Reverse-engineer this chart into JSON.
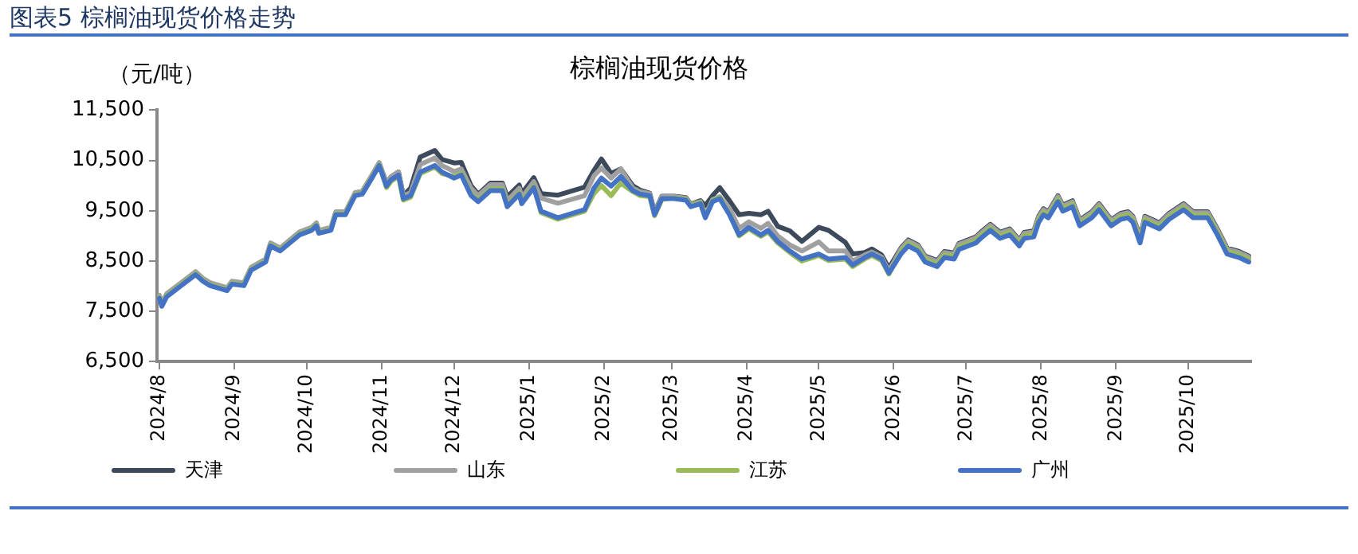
{
  "chart_data": {
    "type": "line",
    "title": "图表5 棕榈油现货价格走势",
    "subtitle": "棕榈油现货价格",
    "ylabel": "（元/吨）",
    "x": [
      "2024-08-01",
      "2024-08-02",
      "2024-08-04",
      "2024-08-10",
      "2024-08-16",
      "2024-08-19",
      "2024-08-22",
      "2024-08-29",
      "2024-08-31",
      "2024-09-05",
      "2024-09-08",
      "2024-09-14",
      "2024-09-16",
      "2024-09-20",
      "2024-09-28",
      "2024-10-03",
      "2024-10-05",
      "2024-10-06",
      "2024-10-11",
      "2024-10-13",
      "2024-10-17",
      "2024-10-21",
      "2024-10-24",
      "2024-10-28",
      "2024-10-31",
      "2024-11-03",
      "2024-11-05",
      "2024-11-08",
      "2024-11-10",
      "2024-11-13",
      "2024-11-17",
      "2024-11-23",
      "2024-11-26",
      "2024-12-01",
      "2024-12-04",
      "2024-12-08",
      "2024-12-11",
      "2024-12-16",
      "2024-12-21",
      "2024-12-23",
      "2024-12-28",
      "2024-12-29",
      "2025-01-03",
      "2025-01-06",
      "2025-01-13",
      "2025-01-24",
      "2025-01-28",
      "2025-01-31",
      "2025-02-04",
      "2025-02-08",
      "2025-02-13",
      "2025-02-16",
      "2025-02-20",
      "2025-02-22",
      "2025-02-25",
      "2025-03-02",
      "2025-03-07",
      "2025-03-09",
      "2025-03-13",
      "2025-03-15",
      "2025-03-18",
      "2025-03-21",
      "2025-03-25",
      "2025-03-29",
      "2025-04-02",
      "2025-04-07",
      "2025-04-10",
      "2025-04-14",
      "2025-04-19",
      "2025-04-24",
      "2025-05-01",
      "2025-05-05",
      "2025-05-12",
      "2025-05-15",
      "2025-05-20",
      "2025-05-23",
      "2025-05-27",
      "2025-05-30",
      "2025-06-04",
      "2025-06-07",
      "2025-06-11",
      "2025-06-14",
      "2025-06-19",
      "2025-06-22",
      "2025-06-26",
      "2025-06-28",
      "2025-07-05",
      "2025-07-07",
      "2025-07-11",
      "2025-07-15",
      "2025-07-19",
      "2025-07-23",
      "2025-07-25",
      "2025-07-29",
      "2025-07-31",
      "2025-08-02",
      "2025-08-04",
      "2025-08-08",
      "2025-08-10",
      "2025-08-14",
      "2025-08-17",
      "2025-08-22",
      "2025-08-25",
      "2025-08-30",
      "2025-09-03",
      "2025-09-06",
      "2025-09-08",
      "2025-09-11",
      "2025-09-13",
      "2025-09-19",
      "2025-09-23",
      "2025-09-29",
      "2025-10-03",
      "2025-10-09",
      "2025-10-13",
      "2025-10-17",
      "2025-10-22",
      "2025-10-26"
    ],
    "series": [
      {
        "name": "天津",
        "color": "#3d4a5c",
        "values": [
          7800,
          7640,
          7830,
          8050,
          8270,
          8140,
          8050,
          7950,
          8080,
          8050,
          8360,
          8520,
          8840,
          8740,
          9060,
          9150,
          9240,
          9090,
          9150,
          9460,
          9460,
          9840,
          9870,
          10190,
          10440,
          10050,
          10180,
          10270,
          9800,
          9950,
          10570,
          10700,
          10520,
          10450,
          10460,
          10000,
          9830,
          10050,
          10050,
          9780,
          10010,
          9840,
          10160,
          9840,
          9810,
          9970,
          10310,
          10530,
          10240,
          10330,
          10000,
          9910,
          9850,
          9470,
          9790,
          9790,
          9760,
          9630,
          9700,
          9600,
          9800,
          9960,
          9700,
          9420,
          9450,
          9420,
          9490,
          9190,
          9100,
          8890,
          9170,
          9110,
          8870,
          8640,
          8670,
          8740,
          8620,
          8360,
          8760,
          8920,
          8820,
          8600,
          8510,
          8690,
          8660,
          8850,
          8980,
          9070,
          9230,
          9070,
          9140,
          8920,
          9070,
          9100,
          9390,
          9540,
          9480,
          9800,
          9610,
          9700,
          9320,
          9480,
          9640,
          9320,
          9450,
          9480,
          9390,
          8980,
          9390,
          9260,
          9450,
          9640,
          9480,
          9480,
          9140,
          8760,
          8690,
          8600
        ]
      },
      {
        "name": "山东",
        "color": "#a0a0a0",
        "values": [
          7820,
          7660,
          7850,
          8070,
          8290,
          8160,
          8070,
          7970,
          8100,
          8070,
          8380,
          8540,
          8860,
          8760,
          9080,
          9170,
          9260,
          9110,
          9170,
          9480,
          9480,
          9860,
          9890,
          10210,
          10460,
          10050,
          10180,
          10270,
          9800,
          9860,
          10420,
          10550,
          10400,
          10280,
          10330,
          9950,
          9800,
          10020,
          10020,
          9700,
          9950,
          9760,
          10080,
          9750,
          9650,
          9800,
          10200,
          10350,
          10150,
          10330,
          9950,
          9880,
          9840,
          9460,
          9780,
          9780,
          9750,
          9620,
          9680,
          9400,
          9720,
          9780,
          9550,
          9150,
          9280,
          9150,
          9250,
          9000,
          8820,
          8700,
          8880,
          8700,
          8700,
          8500,
          8620,
          8680,
          8580,
          8300,
          8740,
          8900,
          8800,
          8580,
          8490,
          8670,
          8640,
          8830,
          8960,
          9050,
          9210,
          9050,
          9120,
          8900,
          9050,
          9080,
          9370,
          9520,
          9460,
          9780,
          9590,
          9680,
          9300,
          9460,
          9620,
          9300,
          9430,
          9460,
          9370,
          8960,
          9370,
          9240,
          9430,
          9620,
          9460,
          9460,
          9120,
          8740,
          8670,
          8580
        ]
      },
      {
        "name": "江苏",
        "color": "#9bbb59",
        "values": [
          7780,
          7620,
          7810,
          8030,
          8250,
          8120,
          8030,
          7930,
          8060,
          8030,
          8340,
          8500,
          8820,
          8720,
          9040,
          9130,
          9220,
          9070,
          9130,
          9440,
          9440,
          9820,
          9850,
          10170,
          10420,
          9960,
          10090,
          10180,
          9710,
          9770,
          10240,
          10370,
          10240,
          10180,
          10240,
          9830,
          9710,
          9930,
          9930,
          9610,
          9860,
          9670,
          9990,
          9460,
          9330,
          9490,
          9850,
          10000,
          9800,
          10050,
          9880,
          9800,
          9780,
          9400,
          9720,
          9760,
          9730,
          9600,
          9660,
          9380,
          9700,
          9760,
          9440,
          9000,
          9140,
          8990,
          9080,
          8860,
          8670,
          8500,
          8610,
          8510,
          8540,
          8390,
          8540,
          8610,
          8510,
          8240,
          8690,
          8850,
          8750,
          8530,
          8440,
          8620,
          8590,
          8780,
          8910,
          9000,
          9160,
          9000,
          9070,
          8850,
          9000,
          9030,
          9320,
          9470,
          9410,
          9730,
          9540,
          9630,
          9250,
          9410,
          9570,
          9250,
          9380,
          9410,
          9320,
          8910,
          9320,
          9190,
          9380,
          9570,
          9410,
          9410,
          9070,
          8690,
          8620,
          8530
        ]
      },
      {
        "name": "广州",
        "color": "#4472c4",
        "values": [
          7760,
          7600,
          7790,
          8010,
          8230,
          8100,
          8010,
          7910,
          8040,
          8010,
          8320,
          8480,
          8800,
          8700,
          9020,
          9110,
          9200,
          9050,
          9110,
          9420,
          9420,
          9800,
          9830,
          10150,
          10400,
          9990,
          10120,
          10210,
          9740,
          9800,
          10270,
          10400,
          10270,
          10150,
          10210,
          9800,
          9680,
          9900,
          9900,
          9580,
          9830,
          9640,
          9960,
          9490,
          9360,
          9520,
          9960,
          10150,
          9990,
          10180,
          9900,
          9830,
          9800,
          9420,
          9740,
          9740,
          9710,
          9580,
          9640,
          9360,
          9680,
          9740,
          9420,
          9020,
          9170,
          9020,
          9110,
          8890,
          8700,
          8540,
          8640,
          8540,
          8570,
          8420,
          8570,
          8640,
          8540,
          8260,
          8640,
          8800,
          8700,
          8480,
          8390,
          8570,
          8540,
          8730,
          8860,
          8950,
          9110,
          8950,
          9020,
          8800,
          8950,
          8980,
          9270,
          9420,
          9360,
          9680,
          9490,
          9580,
          9200,
          9360,
          9520,
          9200,
          9330,
          9360,
          9270,
          8860,
          9270,
          9140,
          9330,
          9520,
          9360,
          9360,
          9020,
          8640,
          8570,
          8480
        ]
      }
    ],
    "xlim": [
      "2024-07-31",
      "2025-10-27"
    ],
    "xticks": [
      {
        "value": "2024-08-01",
        "label": "2024/8"
      },
      {
        "value": "2024-09-01",
        "label": "2024/9"
      },
      {
        "value": "2024-10-01",
        "label": "2024/10"
      },
      {
        "value": "2024-11-01",
        "label": "2024/11"
      },
      {
        "value": "2024-12-01",
        "label": "2024/12"
      },
      {
        "value": "2025-01-01",
        "label": "2025/1"
      },
      {
        "value": "2025-02-01",
        "label": "2025/2"
      },
      {
        "value": "2025-03-01",
        "label": "2025/3"
      },
      {
        "value": "2025-04-01",
        "label": "2025/4"
      },
      {
        "value": "2025-05-01",
        "label": "2025/5"
      },
      {
        "value": "2025-06-01",
        "label": "2025/6"
      },
      {
        "value": "2025-07-01",
        "label": "2025/7"
      },
      {
        "value": "2025-08-01",
        "label": "2025/8"
      },
      {
        "value": "2025-09-01",
        "label": "2025/9"
      },
      {
        "value": "2025-10-01",
        "label": "2025/10"
      }
    ],
    "ylim": [
      6500,
      11500
    ],
    "yticks": [
      {
        "value": 6500,
        "label": "6,500"
      },
      {
        "value": 7500,
        "label": "7,500"
      },
      {
        "value": 8500,
        "label": "8,500"
      },
      {
        "value": 9500,
        "label": "9,500"
      },
      {
        "value": 10500,
        "label": "10,500"
      },
      {
        "value": 11500,
        "label": "11,500"
      }
    ],
    "grid": false,
    "legend": "bottom",
    "marker": "none",
    "line_style": "solid"
  }
}
